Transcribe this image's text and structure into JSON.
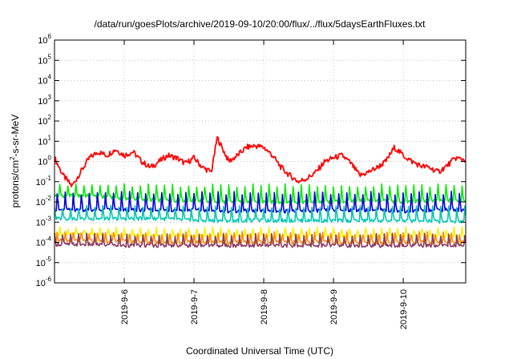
{
  "chart_data": {
    "type": "line",
    "title": "/data/run/goesPlots/archive/2019-09-10/20:00/flux/../flux/5daysEarthFluxes.txt",
    "xlabel": "Coordinated Universal Time (UTC)",
    "ylabel": {
      "prefix": "protons/cm",
      "superscript": "2",
      "suffix": "-s-sr-MeV"
    },
    "y_scale": "log",
    "ylim": [
      1e-06,
      1000000.0
    ],
    "y_ticks": [
      {
        "value": 1e-06,
        "base": "10",
        "exp": "-6"
      },
      {
        "value": 1e-05,
        "base": "10",
        "exp": "-5"
      },
      {
        "value": 0.0001,
        "base": "10",
        "exp": "-4"
      },
      {
        "value": 0.001,
        "base": "10",
        "exp": "-3"
      },
      {
        "value": 0.01,
        "base": "10",
        "exp": "-2"
      },
      {
        "value": 0.1,
        "base": "10",
        "exp": "-1"
      },
      {
        "value": 1,
        "base": "10",
        "exp": "0"
      },
      {
        "value": 10.0,
        "base": "10",
        "exp": "1"
      },
      {
        "value": 100.0,
        "base": "10",
        "exp": "2"
      },
      {
        "value": 1000.0,
        "base": "10",
        "exp": "3"
      },
      {
        "value": 10000.0,
        "base": "10",
        "exp": "4"
      },
      {
        "value": 100000.0,
        "base": "10",
        "exp": "5"
      },
      {
        "value": 1000000.0,
        "base": "10",
        "exp": "6"
      }
    ],
    "xlim": [
      "2019-09-05T00:00",
      "2019-09-10T21:30"
    ],
    "x_ticks": [
      "2019-9-6",
      "2019-9-7",
      "2019-9-8",
      "2019-9-9",
      "2019-9-10"
    ],
    "x_tick_dates": [
      "2019-09-06",
      "2019-09-07",
      "2019-09-08",
      "2019-09-09",
      "2019-09-10"
    ],
    "grid": true,
    "legend": "none",
    "series": [
      {
        "color": "#ff0000",
        "x": [
          "2019-09-05T00:00",
          "2019-09-05T03:00",
          "2019-09-05T06:00",
          "2019-09-05T09:00",
          "2019-09-05T12:00",
          "2019-09-05T15:00",
          "2019-09-05T18:00",
          "2019-09-05T21:00",
          "2019-09-06T00:00",
          "2019-09-06T03:00",
          "2019-09-06T06:00",
          "2019-09-06T09:00",
          "2019-09-06T12:00",
          "2019-09-06T15:00",
          "2019-09-06T18:00",
          "2019-09-06T21:00",
          "2019-09-07T00:00",
          "2019-09-07T03:00",
          "2019-09-07T06:00",
          "2019-09-07T08:00",
          "2019-09-07T12:00",
          "2019-09-07T15:00",
          "2019-09-07T18:00",
          "2019-09-07T21:00",
          "2019-09-08T00:00",
          "2019-09-08T03:00",
          "2019-09-08T06:00",
          "2019-09-08T09:00",
          "2019-09-08T12:00",
          "2019-09-08T15:00",
          "2019-09-08T18:00",
          "2019-09-08T21:00",
          "2019-09-09T00:00",
          "2019-09-09T03:00",
          "2019-09-09T06:00",
          "2019-09-09T09:00",
          "2019-09-09T12:00",
          "2019-09-09T15:00",
          "2019-09-09T18:00",
          "2019-09-09T21:00",
          "2019-09-10T00:00",
          "2019-09-10T03:00",
          "2019-09-10T06:00",
          "2019-09-10T09:00",
          "2019-09-10T12:00",
          "2019-09-10T15:00",
          "2019-09-10T18:00",
          "2019-09-10T21:30"
        ],
        "y": [
          1.5,
          0.2,
          0.06,
          0.3,
          1.5,
          3,
          2,
          4,
          2,
          3,
          1,
          0.5,
          1,
          2,
          1.5,
          0.8,
          1.5,
          0.5,
          0.3,
          15,
          1,
          2,
          5,
          6,
          5,
          2,
          0.5,
          0.2,
          0.1,
          0.15,
          0.3,
          1,
          1.5,
          2,
          0.8,
          0.2,
          0.3,
          0.5,
          1,
          5,
          2,
          1,
          0.6,
          0.5,
          0.3,
          0.6,
          1.5,
          1.2
        ]
      },
      {
        "color": "#00ee00",
        "x": [
          "2019-09-05T00:00",
          "2019-09-05T12:00",
          "2019-09-06T00:00",
          "2019-09-06T12:00",
          "2019-09-07T00:00",
          "2019-09-07T12:00",
          "2019-09-08T00:00",
          "2019-09-08T12:00",
          "2019-09-09T00:00",
          "2019-09-09T12:00",
          "2019-09-10T00:00",
          "2019-09-10T12:00",
          "2019-09-10T21:30"
        ],
        "y": [
          0.02,
          0.02,
          0.015,
          0.012,
          0.012,
          0.01,
          0.01,
          0.01,
          0.01,
          0.012,
          0.01,
          0.012,
          0.012
        ],
        "spikes_to": 0.07
      },
      {
        "color": "#0000dd",
        "x": [
          "2019-09-05T00:00",
          "2019-09-05T12:00",
          "2019-09-06T00:00",
          "2019-09-06T12:00",
          "2019-09-07T00:00",
          "2019-09-07T12:00",
          "2019-09-08T00:00",
          "2019-09-08T12:00",
          "2019-09-09T00:00",
          "2019-09-09T12:00",
          "2019-09-10T00:00",
          "2019-09-10T12:00",
          "2019-09-10T21:30"
        ],
        "y": [
          0.004,
          0.004,
          0.004,
          0.004,
          0.004,
          0.0035,
          0.0035,
          0.0035,
          0.004,
          0.004,
          0.0035,
          0.004,
          0.004
        ],
        "spikes_to": 0.03
      },
      {
        "color": "#00c8b4",
        "x": [
          "2019-09-05T00:00",
          "2019-09-05T12:00",
          "2019-09-06T00:00",
          "2019-09-06T12:00",
          "2019-09-07T00:00",
          "2019-09-07T12:00",
          "2019-09-08T00:00",
          "2019-09-08T12:00",
          "2019-09-09T00:00",
          "2019-09-09T12:00",
          "2019-09-10T00:00",
          "2019-09-10T12:00",
          "2019-09-10T21:30"
        ],
        "y": [
          0.0015,
          0.0015,
          0.0015,
          0.0015,
          0.0012,
          0.0012,
          0.0012,
          0.0012,
          0.0012,
          0.0012,
          0.0012,
          0.0011,
          0.0011
        ],
        "spikes_to": 0.006
      },
      {
        "color": "#ffee00",
        "x": [
          "2019-09-05T00:00",
          "2019-09-05T12:00",
          "2019-09-06T00:00",
          "2019-09-06T12:00",
          "2019-09-07T00:00",
          "2019-09-07T12:00",
          "2019-09-08T00:00",
          "2019-09-08T12:00",
          "2019-09-09T00:00",
          "2019-09-09T12:00",
          "2019-09-10T00:00",
          "2019-09-10T12:00",
          "2019-09-10T21:30"
        ],
        "y": [
          0.00025,
          0.00025,
          0.00022,
          0.0002,
          0.0002,
          0.0002,
          0.0002,
          0.0002,
          0.0002,
          0.0002,
          0.0002,
          0.0002,
          0.0002
        ],
        "spikes_to": 0.0005
      },
      {
        "color": "#ff8c00",
        "x": [
          "2019-09-05T00:00",
          "2019-09-05T12:00",
          "2019-09-06T00:00",
          "2019-09-06T12:00",
          "2019-09-07T00:00",
          "2019-09-07T12:00",
          "2019-09-08T00:00",
          "2019-09-08T12:00",
          "2019-09-09T00:00",
          "2019-09-09T12:00",
          "2019-09-10T00:00",
          "2019-09-10T12:00",
          "2019-09-10T21:30"
        ],
        "y": [
          0.00012,
          0.00012,
          0.00011,
          0.0001,
          0.0001,
          0.0001,
          0.0001,
          0.0001,
          0.0001,
          0.0001,
          0.0001,
          0.0001,
          0.0001
        ],
        "spikes_to": 0.0003
      },
      {
        "color": "#8b3a62",
        "x": [
          "2019-09-05T00:00",
          "2019-09-05T12:00",
          "2019-09-06T00:00",
          "2019-09-06T12:00",
          "2019-09-07T00:00",
          "2019-09-07T12:00",
          "2019-09-08T00:00",
          "2019-09-08T12:00",
          "2019-09-09T00:00",
          "2019-09-09T12:00",
          "2019-09-10T00:00",
          "2019-09-10T12:00",
          "2019-09-10T21:30"
        ],
        "y": [
          8e-05,
          8e-05,
          7e-05,
          7e-05,
          7e-05,
          7e-05,
          7e-05,
          7e-05,
          7e-05,
          7e-05,
          7e-05,
          7e-05,
          7e-05
        ],
        "spikes_to": 0.00025
      }
    ]
  }
}
